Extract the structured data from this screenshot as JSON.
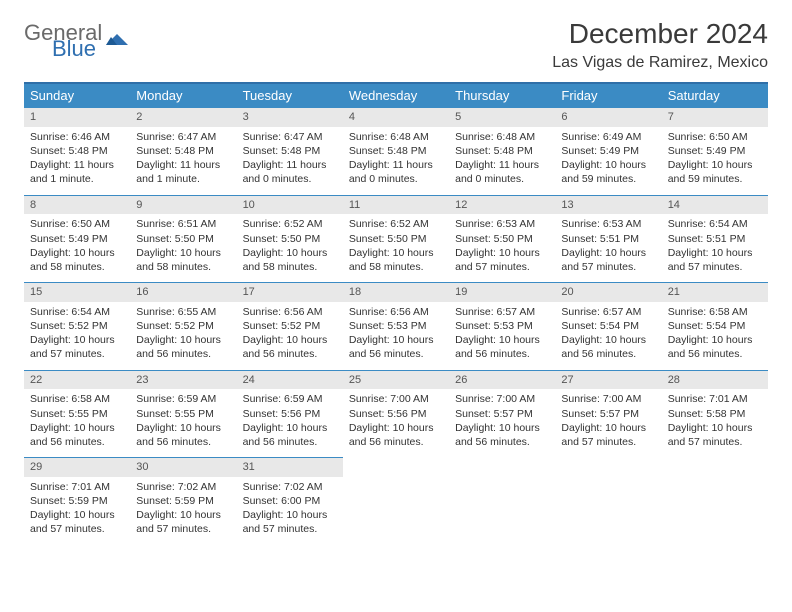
{
  "logo": {
    "text1": "General",
    "text2": "Blue",
    "icon_color": "#2f6fb0",
    "text1_color": "#6a6a6a"
  },
  "header": {
    "month_title": "December 2024",
    "location": "Las Vigas de Ramirez, Mexico"
  },
  "colors": {
    "header_bg": "#3b8bc4",
    "header_border": "#2f6fa8",
    "cell_border": "#3b8bc4",
    "daynum_bg": "#e8e8e8",
    "text": "#333333",
    "background": "#ffffff"
  },
  "typography": {
    "title_fontsize": 28,
    "location_fontsize": 16,
    "th_fontsize": 13,
    "cell_fontsize": 10.5
  },
  "calendar": {
    "day_headers": [
      "Sunday",
      "Monday",
      "Tuesday",
      "Wednesday",
      "Thursday",
      "Friday",
      "Saturday"
    ],
    "weeks": [
      [
        {
          "n": "1",
          "sr": "Sunrise: 6:46 AM",
          "ss": "Sunset: 5:48 PM",
          "dl": "Daylight: 11 hours and 1 minute."
        },
        {
          "n": "2",
          "sr": "Sunrise: 6:47 AM",
          "ss": "Sunset: 5:48 PM",
          "dl": "Daylight: 11 hours and 1 minute."
        },
        {
          "n": "3",
          "sr": "Sunrise: 6:47 AM",
          "ss": "Sunset: 5:48 PM",
          "dl": "Daylight: 11 hours and 0 minutes."
        },
        {
          "n": "4",
          "sr": "Sunrise: 6:48 AM",
          "ss": "Sunset: 5:48 PM",
          "dl": "Daylight: 11 hours and 0 minutes."
        },
        {
          "n": "5",
          "sr": "Sunrise: 6:48 AM",
          "ss": "Sunset: 5:48 PM",
          "dl": "Daylight: 11 hours and 0 minutes."
        },
        {
          "n": "6",
          "sr": "Sunrise: 6:49 AM",
          "ss": "Sunset: 5:49 PM",
          "dl": "Daylight: 10 hours and 59 minutes."
        },
        {
          "n": "7",
          "sr": "Sunrise: 6:50 AM",
          "ss": "Sunset: 5:49 PM",
          "dl": "Daylight: 10 hours and 59 minutes."
        }
      ],
      [
        {
          "n": "8",
          "sr": "Sunrise: 6:50 AM",
          "ss": "Sunset: 5:49 PM",
          "dl": "Daylight: 10 hours and 58 minutes."
        },
        {
          "n": "9",
          "sr": "Sunrise: 6:51 AM",
          "ss": "Sunset: 5:50 PM",
          "dl": "Daylight: 10 hours and 58 minutes."
        },
        {
          "n": "10",
          "sr": "Sunrise: 6:52 AM",
          "ss": "Sunset: 5:50 PM",
          "dl": "Daylight: 10 hours and 58 minutes."
        },
        {
          "n": "11",
          "sr": "Sunrise: 6:52 AM",
          "ss": "Sunset: 5:50 PM",
          "dl": "Daylight: 10 hours and 58 minutes."
        },
        {
          "n": "12",
          "sr": "Sunrise: 6:53 AM",
          "ss": "Sunset: 5:50 PM",
          "dl": "Daylight: 10 hours and 57 minutes."
        },
        {
          "n": "13",
          "sr": "Sunrise: 6:53 AM",
          "ss": "Sunset: 5:51 PM",
          "dl": "Daylight: 10 hours and 57 minutes."
        },
        {
          "n": "14",
          "sr": "Sunrise: 6:54 AM",
          "ss": "Sunset: 5:51 PM",
          "dl": "Daylight: 10 hours and 57 minutes."
        }
      ],
      [
        {
          "n": "15",
          "sr": "Sunrise: 6:54 AM",
          "ss": "Sunset: 5:52 PM",
          "dl": "Daylight: 10 hours and 57 minutes."
        },
        {
          "n": "16",
          "sr": "Sunrise: 6:55 AM",
          "ss": "Sunset: 5:52 PM",
          "dl": "Daylight: 10 hours and 56 minutes."
        },
        {
          "n": "17",
          "sr": "Sunrise: 6:56 AM",
          "ss": "Sunset: 5:52 PM",
          "dl": "Daylight: 10 hours and 56 minutes."
        },
        {
          "n": "18",
          "sr": "Sunrise: 6:56 AM",
          "ss": "Sunset: 5:53 PM",
          "dl": "Daylight: 10 hours and 56 minutes."
        },
        {
          "n": "19",
          "sr": "Sunrise: 6:57 AM",
          "ss": "Sunset: 5:53 PM",
          "dl": "Daylight: 10 hours and 56 minutes."
        },
        {
          "n": "20",
          "sr": "Sunrise: 6:57 AM",
          "ss": "Sunset: 5:54 PM",
          "dl": "Daylight: 10 hours and 56 minutes."
        },
        {
          "n": "21",
          "sr": "Sunrise: 6:58 AM",
          "ss": "Sunset: 5:54 PM",
          "dl": "Daylight: 10 hours and 56 minutes."
        }
      ],
      [
        {
          "n": "22",
          "sr": "Sunrise: 6:58 AM",
          "ss": "Sunset: 5:55 PM",
          "dl": "Daylight: 10 hours and 56 minutes."
        },
        {
          "n": "23",
          "sr": "Sunrise: 6:59 AM",
          "ss": "Sunset: 5:55 PM",
          "dl": "Daylight: 10 hours and 56 minutes."
        },
        {
          "n": "24",
          "sr": "Sunrise: 6:59 AM",
          "ss": "Sunset: 5:56 PM",
          "dl": "Daylight: 10 hours and 56 minutes."
        },
        {
          "n": "25",
          "sr": "Sunrise: 7:00 AM",
          "ss": "Sunset: 5:56 PM",
          "dl": "Daylight: 10 hours and 56 minutes."
        },
        {
          "n": "26",
          "sr": "Sunrise: 7:00 AM",
          "ss": "Sunset: 5:57 PM",
          "dl": "Daylight: 10 hours and 56 minutes."
        },
        {
          "n": "27",
          "sr": "Sunrise: 7:00 AM",
          "ss": "Sunset: 5:57 PM",
          "dl": "Daylight: 10 hours and 57 minutes."
        },
        {
          "n": "28",
          "sr": "Sunrise: 7:01 AM",
          "ss": "Sunset: 5:58 PM",
          "dl": "Daylight: 10 hours and 57 minutes."
        }
      ],
      [
        {
          "n": "29",
          "sr": "Sunrise: 7:01 AM",
          "ss": "Sunset: 5:59 PM",
          "dl": "Daylight: 10 hours and 57 minutes."
        },
        {
          "n": "30",
          "sr": "Sunrise: 7:02 AM",
          "ss": "Sunset: 5:59 PM",
          "dl": "Daylight: 10 hours and 57 minutes."
        },
        {
          "n": "31",
          "sr": "Sunrise: 7:02 AM",
          "ss": "Sunset: 6:00 PM",
          "dl": "Daylight: 10 hours and 57 minutes."
        },
        null,
        null,
        null,
        null
      ]
    ]
  }
}
